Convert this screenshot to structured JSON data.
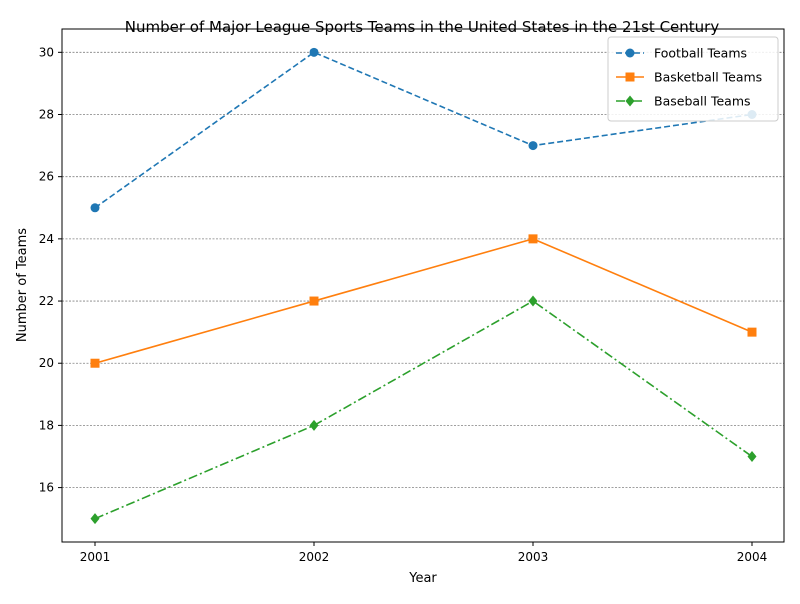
{
  "chart_data": {
    "type": "line",
    "title": "Number of Major League Sports Teams in the United States in the 21st Century",
    "xlabel": "Year",
    "ylabel": "Number of Teams",
    "x": [
      "2001",
      "2002",
      "2003",
      "2004"
    ],
    "ylim": [
      14.25,
      30.75
    ],
    "yticks": [
      16,
      18,
      20,
      22,
      24,
      26,
      28,
      30
    ],
    "grid": "horizontal",
    "legend_position": "top-right",
    "series": [
      {
        "name": "Football Teams",
        "values": [
          25,
          30,
          27,
          28
        ],
        "color": "#1f77b4",
        "line": "dashed",
        "marker": "circle"
      },
      {
        "name": "Basketball Teams",
        "values": [
          20,
          22,
          24,
          21
        ],
        "color": "#ff7f0e",
        "line": "solid",
        "marker": "square"
      },
      {
        "name": "Baseball Teams",
        "values": [
          15,
          18,
          22,
          17
        ],
        "color": "#2ca02c",
        "line": "dashdot",
        "marker": "diamond"
      }
    ]
  }
}
